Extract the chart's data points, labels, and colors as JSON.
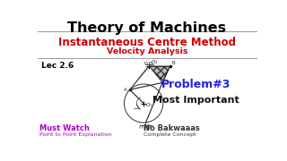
{
  "bg_color": "#ffffff",
  "title": "Theory of Machines",
  "title_color": "#000000",
  "title_fontsize": 11.5,
  "subtitle1": "Instantaneous Centre Method",
  "subtitle1_color": "#cc0000",
  "subtitle1_fontsize": 8.5,
  "subtitle2": "Velocity Analysis",
  "subtitle2_color": "#cc0000",
  "subtitle2_fontsize": 6.8,
  "lec_text": "Lec 2.6",
  "lec_color": "#000000",
  "lec_fontsize": 6.5,
  "problem_text": "Problem#3",
  "problem_color": "#2222dd",
  "problem_fontsize": 9,
  "mostimportant_text": "Most Important",
  "mostimportant_color": "#111111",
  "mostimportant_fontsize": 8,
  "mustwatch_text": "Must Watch",
  "mustwatch_color": "#aa00cc",
  "mustwatch_fontsize": 6,
  "mustwatch_sub": "Point to Point Explanation",
  "mustwatch_sub_color": "#aa00cc",
  "mustwatch_sub_fontsize": 4.5,
  "nobak_text": "No Bakwaaas",
  "nobak_color": "#333333",
  "nobak_fontsize": 6,
  "nobak_sub": "Complete Concept",
  "nobak_sub_color": "#333333",
  "nobak_sub_fontsize": 4.5,
  "hline_color": "#888888",
  "line_color": "#222222"
}
